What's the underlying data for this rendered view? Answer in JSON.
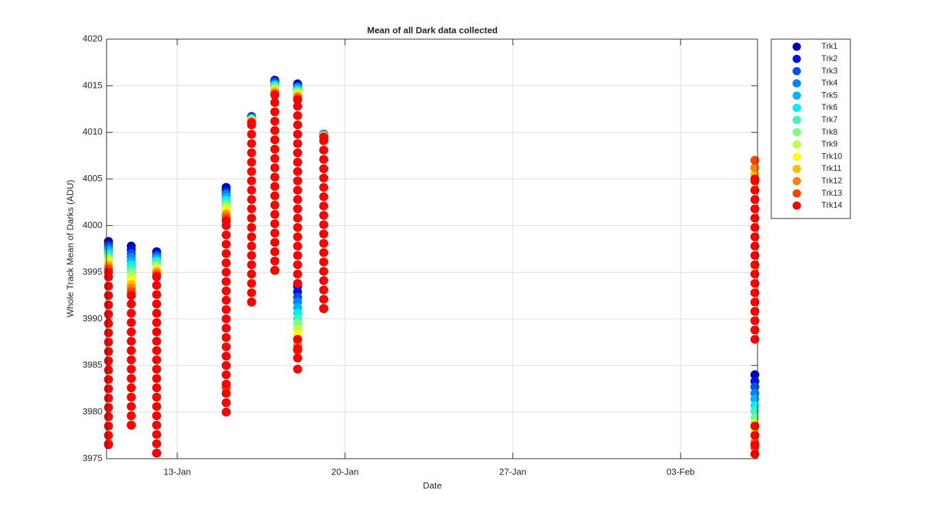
{
  "chart_data": {
    "type": "scatter",
    "title": "Mean of all Dark data collected",
    "xlabel": "Date",
    "ylabel": "Whole Track Mean of Darks (ADU)",
    "xlim": [
      10.05,
      37.21
    ],
    "xticks": [
      {
        "value": 13,
        "label": "13-Jan"
      },
      {
        "value": 20,
        "label": "20-Jan"
      },
      {
        "value": 27,
        "label": "27-Jan"
      },
      {
        "value": 34,
        "label": "03-Feb"
      }
    ],
    "ylim": [
      3975,
      4020
    ],
    "yticks": [
      3975,
      3980,
      3985,
      3990,
      3995,
      4000,
      4005,
      4010,
      4015,
      4020
    ],
    "grid": true,
    "legend": "outside-right",
    "series": [
      {
        "name": "Trk1",
        "color": "#0000b4",
        "x": [
          10.13,
          10.13,
          11.08,
          11.08,
          12.14,
          12.14,
          15.04,
          15.04,
          16.1,
          16.1,
          17.07,
          17.07,
          18.02,
          18.02,
          19.11,
          19.11,
          37.1,
          37.1
        ],
        "values": [
          3998.3,
          3976.6,
          3997.8,
          3978.6,
          3997.2,
          3975.6,
          4004.1,
          3982.6,
          4011.7,
          3991.8,
          4015.6,
          3995.2,
          4015.2,
          3993.5,
          4009.8,
          3991.1,
          3995.5,
          3984.0
        ]
      },
      {
        "name": "Trk2",
        "color": "#0010e6",
        "x": [
          10.13,
          10.13,
          11.08,
          11.08,
          12.14,
          12.14,
          15.04,
          15.04,
          16.1,
          16.1,
          17.07,
          17.07,
          18.02,
          18.02,
          19.11,
          19.11,
          37.1,
          37.1
        ],
        "values": [
          3998.0,
          3976.6,
          3997.4,
          3978.6,
          3997.0,
          3975.6,
          4003.8,
          3982.6,
          4011.6,
          3991.8,
          4015.5,
          3995.2,
          4015.1,
          3992.9,
          4009.8,
          3991.1,
          3995.5,
          3983.3
        ]
      },
      {
        "name": "Trk3",
        "color": "#0050f0",
        "x": [
          10.13,
          10.13,
          11.08,
          11.08,
          12.14,
          12.14,
          15.04,
          15.04,
          16.1,
          16.1,
          17.07,
          17.07,
          18.02,
          18.02,
          19.11,
          19.11,
          37.1,
          37.1
        ],
        "values": [
          3997.8,
          3976.6,
          3997.0,
          3978.6,
          3996.8,
          3975.6,
          4003.5,
          3982.6,
          4011.6,
          3991.8,
          4015.4,
          3995.2,
          4014.9,
          3992.3,
          4009.8,
          3991.1,
          3995.5,
          3982.7
        ]
      },
      {
        "name": "Trk4",
        "color": "#0084ff",
        "x": [
          10.13,
          10.13,
          11.08,
          11.08,
          12.14,
          12.14,
          15.04,
          15.04,
          16.1,
          16.1,
          17.07,
          17.07,
          18.02,
          18.02,
          19.11,
          19.11,
          37.1,
          37.1
        ],
        "values": [
          3997.5,
          3976.6,
          3996.6,
          3978.6,
          3996.6,
          3975.6,
          4003.3,
          3982.6,
          4011.5,
          3991.8,
          4015.2,
          3995.2,
          4014.8,
          3991.8,
          4009.7,
          3991.1,
          3995.5,
          3982.0
        ]
      },
      {
        "name": "Trk5",
        "color": "#00b4ff",
        "x": [
          10.13,
          10.13,
          11.08,
          11.08,
          12.14,
          12.14,
          15.04,
          15.04,
          16.1,
          16.1,
          17.07,
          17.07,
          18.02,
          18.02,
          19.11,
          19.11,
          37.1,
          37.1
        ],
        "values": [
          3997.3,
          3976.6,
          3996.2,
          3978.6,
          3996.4,
          3975.6,
          4003.0,
          3982.6,
          4011.5,
          3991.8,
          4015.1,
          3995.2,
          4014.7,
          3991.2,
          4009.7,
          3991.1,
          3995.5,
          3981.4
        ]
      },
      {
        "name": "Trk6",
        "color": "#00f0f0",
        "x": [
          10.13,
          10.13,
          11.08,
          11.08,
          12.14,
          12.14,
          15.04,
          15.04,
          16.1,
          16.1,
          17.07,
          17.07,
          18.02,
          18.02,
          19.11,
          19.11,
          37.1,
          37.1
        ],
        "values": [
          3997.0,
          3976.6,
          3995.8,
          3978.6,
          3996.2,
          3975.6,
          4002.7,
          3982.6,
          4011.4,
          3991.8,
          4015.0,
          3995.2,
          4014.5,
          3990.6,
          4009.7,
          3991.1,
          3995.5,
          3980.7
        ]
      },
      {
        "name": "Trk7",
        "color": "#40f0c0",
        "x": [
          10.13,
          10.13,
          11.08,
          11.08,
          12.14,
          12.14,
          15.04,
          15.04,
          16.1,
          16.1,
          17.07,
          17.07,
          18.02,
          18.02,
          19.11,
          19.11,
          37.1,
          37.1
        ],
        "values": [
          3996.8,
          3976.6,
          3995.4,
          3978.6,
          3996.0,
          3975.6,
          4002.4,
          3982.6,
          4011.4,
          3991.8,
          4014.9,
          3995.2,
          4014.4,
          3990.0,
          4009.7,
          3991.1,
          3995.5,
          3980.1
        ]
      },
      {
        "name": "Trk8",
        "color": "#78ff88",
        "x": [
          10.13,
          10.13,
          11.08,
          11.08,
          12.14,
          12.14,
          15.04,
          15.04,
          16.1,
          16.1,
          17.07,
          17.07,
          18.02,
          18.02,
          19.11,
          19.11,
          37.1,
          37.1
        ],
        "values": [
          3996.5,
          3976.6,
          3995.0,
          3978.6,
          3995.7,
          3975.6,
          4002.2,
          3982.6,
          4011.3,
          3991.8,
          4014.7,
          3995.2,
          4014.3,
          3989.5,
          4009.6,
          3991.1,
          3995.5,
          3979.4
        ]
      },
      {
        "name": "Trk9",
        "color": "#c0ff40",
        "x": [
          10.13,
          10.13,
          11.08,
          11.08,
          12.14,
          12.14,
          15.04,
          15.04,
          16.1,
          16.1,
          17.07,
          17.07,
          18.02,
          18.02,
          19.11,
          19.11,
          37.1,
          37.1
        ],
        "values": [
          3996.3,
          3976.6,
          3994.5,
          3978.6,
          3995.5,
          3975.6,
          4001.9,
          3982.6,
          4011.3,
          3991.8,
          4014.6,
          3995.2,
          4014.2,
          3988.9,
          4009.6,
          3991.1,
          3995.5,
          3978.8
        ]
      },
      {
        "name": "Trk10",
        "color": "#ffff00",
        "x": [
          10.13,
          10.13,
          11.08,
          11.08,
          12.14,
          12.14,
          15.04,
          15.04,
          16.1,
          16.1,
          17.07,
          17.07,
          18.02,
          18.02,
          19.11,
          19.11,
          37.1,
          37.1
        ],
        "values": [
          3996.0,
          3976.6,
          3994.1,
          3978.6,
          3995.3,
          3975.6,
          4001.6,
          3982.6,
          4011.2,
          3991.8,
          4014.5,
          3995.2,
          4014.0,
          3988.3,
          4009.6,
          3991.1,
          4004.0,
          3978.1
        ]
      },
      {
        "name": "Trk11",
        "color": "#ffbc00",
        "x": [
          10.13,
          10.13,
          11.08,
          11.08,
          12.14,
          12.14,
          15.04,
          15.04,
          16.1,
          16.1,
          17.07,
          17.07,
          18.02,
          18.02,
          19.11,
          19.11,
          37.1,
          37.1
        ],
        "values": [
          3995.8,
          3976.6,
          3993.7,
          3978.6,
          3995.1,
          3975.6,
          4001.3,
          3982.6,
          4011.2,
          3991.8,
          4014.4,
          3995.2,
          4013.9,
          3987.7,
          4009.6,
          3991.1,
          4005.5,
          3977.5
        ]
      },
      {
        "name": "Trk12",
        "color": "#ff8000",
        "x": [
          10.13,
          10.13,
          11.08,
          11.08,
          12.14,
          12.14,
          15.04,
          15.04,
          16.1,
          16.1,
          17.07,
          17.07,
          18.02,
          18.02,
          19.11,
          19.11,
          37.1,
          37.1
        ],
        "values": [
          3995.5,
          3976.6,
          3993.3,
          3978.6,
          3994.9,
          3975.6,
          4001.1,
          3982.6,
          4011.1,
          3991.8,
          4014.2,
          3995.2,
          4013.8,
          3987.2,
          4009.5,
          3991.1,
          4006.2,
          3976.8
        ]
      },
      {
        "name": "Trk13",
        "color": "#ff4400",
        "x": [
          10.13,
          10.13,
          11.08,
          11.08,
          12.14,
          12.14,
          15.04,
          15.04,
          16.1,
          16.1,
          17.07,
          17.07,
          18.02,
          18.02,
          19.11,
          19.11,
          37.1,
          37.1
        ],
        "values": [
          3995.3,
          3976.6,
          3992.9,
          3978.6,
          3994.7,
          3975.6,
          4000.8,
          3982.6,
          4011.1,
          3991.8,
          4014.1,
          3995.2,
          4013.6,
          3986.6,
          4009.5,
          3991.1,
          4007.0,
          3976.2
        ]
      },
      {
        "name": "Trk14",
        "color": "#ff0000",
        "x": [
          10.13,
          10.13,
          10.13,
          10.13,
          10.13,
          10.13,
          10.13,
          10.13,
          10.13,
          10.13,
          10.13,
          10.13,
          10.13,
          10.13,
          10.13,
          10.13,
          10.13,
          10.13,
          10.13,
          10.13,
          11.08,
          11.08,
          11.08,
          11.08,
          11.08,
          11.08,
          11.08,
          11.08,
          11.08,
          11.08,
          11.08,
          11.08,
          11.08,
          11.08,
          11.08,
          12.14,
          12.14,
          12.14,
          12.14,
          12.14,
          12.14,
          12.14,
          12.14,
          12.14,
          12.14,
          12.14,
          12.14,
          12.14,
          12.14,
          12.14,
          12.14,
          12.14,
          12.14,
          12.14,
          12.14,
          15.04,
          15.04,
          15.04,
          15.04,
          15.04,
          15.04,
          15.04,
          15.04,
          15.04,
          15.04,
          15.04,
          15.04,
          15.04,
          15.04,
          15.04,
          15.04,
          15.04,
          15.04,
          15.04,
          15.04,
          15.04,
          15.04,
          16.1,
          16.1,
          16.1,
          16.1,
          16.1,
          16.1,
          16.1,
          16.1,
          16.1,
          16.1,
          16.1,
          16.1,
          16.1,
          16.1,
          16.1,
          16.1,
          16.1,
          16.1,
          16.1,
          16.1,
          16.1,
          17.07,
          17.07,
          17.07,
          17.07,
          17.07,
          17.07,
          17.07,
          17.07,
          17.07,
          17.07,
          17.07,
          17.07,
          17.07,
          17.07,
          17.07,
          17.07,
          17.07,
          17.07,
          17.07,
          17.07,
          18.02,
          18.02,
          18.02,
          18.02,
          18.02,
          18.02,
          18.02,
          18.02,
          18.02,
          18.02,
          18.02,
          18.02,
          18.02,
          18.02,
          18.02,
          18.02,
          18.02,
          18.02,
          18.02,
          18.02,
          18.02,
          18.02,
          18.02,
          18.02,
          18.02,
          19.11,
          19.11,
          19.11,
          19.11,
          19.11,
          19.11,
          19.11,
          19.11,
          19.11,
          19.11,
          19.11,
          19.11,
          19.11,
          19.11,
          19.11,
          19.11,
          19.11,
          19.11,
          19.11,
          19.11,
          37.1,
          37.1,
          37.1,
          37.1,
          37.1,
          37.1,
          37.1,
          37.1,
          37.1,
          37.1,
          37.1,
          37.1,
          37.1,
          37.1,
          37.1,
          37.1,
          37.1,
          37.1,
          37.1,
          37.1,
          37.1,
          37.1,
          37.1
        ],
        "values": [
          3976.5,
          3977.5,
          3978.5,
          3979.5,
          3980.5,
          3981.5,
          3982.5,
          3983.5,
          3984.5,
          3985.5,
          3986.5,
          3987.5,
          3988.5,
          3989.5,
          3990.5,
          3991.5,
          3992.5,
          3993.5,
          3994.5,
          3995,
          3978.6,
          3979.6,
          3980.6,
          3981.6,
          3982.6,
          3983.6,
          3984.6,
          3985.6,
          3986.6,
          3987.6,
          3988.6,
          3989.6,
          3990.6,
          3991.6,
          3992.5,
          3975.6,
          3976.6,
          3977.6,
          3978.6,
          3979.6,
          3980.6,
          3981.6,
          3982.6,
          3983.6,
          3984.6,
          3985.6,
          3986.6,
          3987.6,
          3988.6,
          3989.6,
          3990.6,
          3991.6,
          3992.6,
          3993.6,
          3994.5,
          3980,
          3981,
          3982,
          3983,
          3984,
          3985,
          3986,
          3987,
          3988,
          3989,
          3990,
          3991,
          3992,
          3993,
          3994,
          3995,
          3996,
          3997,
          3998,
          3999,
          4000,
          4000.5,
          3991.8,
          3992.8,
          3993.8,
          3994.8,
          3995.8,
          3996.8,
          3997.8,
          3998.8,
          3999.8,
          4000.8,
          4001.8,
          4002.8,
          4003.8,
          4004.8,
          4005.8,
          4006.8,
          4007.8,
          4008.8,
          4009.8,
          4010.8,
          4011,
          3995.2,
          3996.2,
          3997.2,
          3998.2,
          3999.2,
          4000.2,
          4001.2,
          4002.2,
          4003.2,
          4004.2,
          4005.2,
          4006.2,
          4007.2,
          4008.2,
          4009.2,
          4010.2,
          4011.2,
          4012.2,
          4013.2,
          4014,
          3984.6,
          3985.8,
          3986.8,
          3987.8,
          3993.8,
          3994.8,
          3995.8,
          3996.8,
          3997.8,
          3998.8,
          3999.8,
          4000.8,
          4001.8,
          4002.8,
          4003.8,
          4004.8,
          4005.8,
          4006.8,
          4007.8,
          4008.8,
          4009.8,
          4010.8,
          4011.8,
          4012.8,
          4013.5,
          3991.1,
          3992.1,
          3993.1,
          3994.1,
          3995.1,
          3996.1,
          3997.1,
          3998.1,
          3999.1,
          4000.1,
          4001.1,
          4002.1,
          4003.1,
          4004.1,
          4005.1,
          4006.1,
          4007.1,
          4008.1,
          4009.1,
          4009.5,
          3975.5,
          3976.5,
          3977.5,
          3978.5,
          3987.8,
          3988.8,
          3989.8,
          3990.8,
          3991.8,
          3992.8,
          3993.8,
          3994.8,
          3995.8,
          3996.8,
          3997.8,
          3998.8,
          3999.8,
          4000.8,
          4001.8,
          4002.8,
          4003.8,
          4004.8,
          4005
        ]
      }
    ]
  }
}
